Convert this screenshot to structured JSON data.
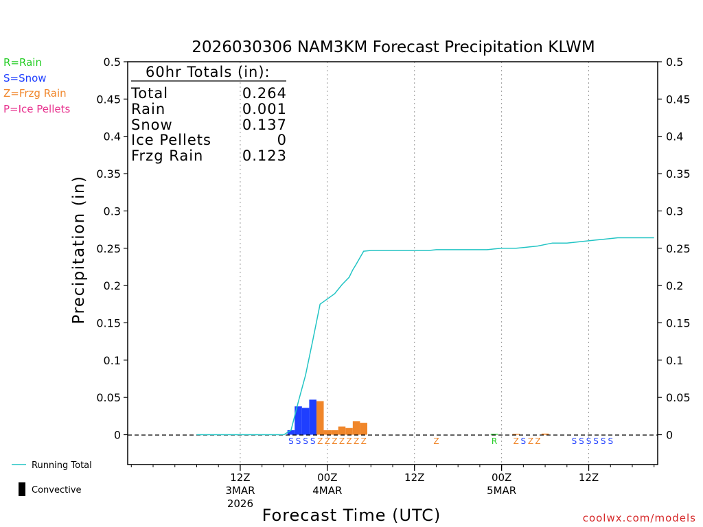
{
  "chart_data": {
    "type": "bar",
    "title": "2026030306 NAM3KM Forecast Precipitation KLWM",
    "xlabel": "Forecast Time (UTC)",
    "ylabel": "Precipitation (in)",
    "ylim": [
      -0.04,
      0.5
    ],
    "yticks": [
      "0.5",
      "0.45",
      "0.4",
      "0.35",
      "0.3",
      "0.25",
      "0.2",
      "0.15",
      "0.1",
      "0.05",
      "0"
    ],
    "ytick_values": [
      0.5,
      0.45,
      0.4,
      0.35,
      0.3,
      0.25,
      0.2,
      0.15,
      0.1,
      0.05,
      0
    ],
    "x_range_hours": [
      -9.5,
      63.5
    ],
    "x_ticks": [
      {
        "hour": 6,
        "l1": "12Z",
        "l2": "3MAR",
        "l3": "2026"
      },
      {
        "hour": 18,
        "l1": "00Z",
        "l2": "4MAR",
        "l3": ""
      },
      {
        "hour": 30,
        "l1": "12Z",
        "l2": "",
        "l3": ""
      },
      {
        "hour": 42,
        "l1": "00Z",
        "l2": "5MAR",
        "l3": ""
      },
      {
        "hour": 54,
        "l1": "12Z",
        "l2": "",
        "l3": ""
      }
    ],
    "bars": [
      {
        "hour": 13,
        "value": 0.006,
        "type": "S"
      },
      {
        "hour": 14,
        "value": 0.038,
        "type": "S"
      },
      {
        "hour": 15,
        "value": 0.036,
        "type": "S"
      },
      {
        "hour": 16,
        "value": 0.047,
        "type": "S"
      },
      {
        "hour": 17,
        "value": 0.045,
        "type": "Z"
      },
      {
        "hour": 18,
        "value": 0.006,
        "type": "Z"
      },
      {
        "hour": 19,
        "value": 0.006,
        "type": "Z"
      },
      {
        "hour": 20,
        "value": 0.011,
        "type": "Z"
      },
      {
        "hour": 21,
        "value": 0.009,
        "type": "Z"
      },
      {
        "hour": 22,
        "value": 0.018,
        "type": "Z"
      },
      {
        "hour": 23,
        "value": 0.016,
        "type": "Z"
      },
      {
        "hour": 41,
        "value": 0.0008,
        "type": "R"
      },
      {
        "hour": 44,
        "value": 0.0008,
        "type": "Z"
      },
      {
        "hour": 48,
        "value": 0.0015,
        "type": "Z"
      }
    ],
    "running_total": {
      "name": "Running Total",
      "x": [
        0,
        12,
        13,
        14,
        15,
        16,
        17,
        18,
        19,
        20,
        21,
        21.5,
        22,
        23,
        24,
        25,
        26,
        27,
        28,
        29,
        30,
        31,
        32,
        33,
        34,
        35,
        36,
        37,
        38,
        39,
        40,
        41,
        42,
        43,
        44,
        45,
        46,
        47,
        48,
        49,
        50,
        51,
        52,
        53,
        54,
        55,
        56,
        57,
        58,
        59,
        60,
        61,
        62,
        63
      ],
      "y": [
        0,
        0,
        0.006,
        0.044,
        0.08,
        0.127,
        0.175,
        0.182,
        0.189,
        0.201,
        0.211,
        0.221,
        0.229,
        0.246,
        0.247,
        0.247,
        0.247,
        0.247,
        0.247,
        0.247,
        0.247,
        0.247,
        0.247,
        0.248,
        0.248,
        0.248,
        0.248,
        0.248,
        0.248,
        0.248,
        0.248,
        0.249,
        0.25,
        0.25,
        0.25,
        0.251,
        0.252,
        0.253,
        0.255,
        0.257,
        0.257,
        0.257,
        0.258,
        0.259,
        0.26,
        0.261,
        0.262,
        0.263,
        0.264,
        0.264,
        0.264,
        0.264,
        0.264,
        0.264
      ]
    },
    "type_labels": [
      {
        "hour": 13,
        "ch": "S",
        "type": "S"
      },
      {
        "hour": 14,
        "ch": "S",
        "type": "S"
      },
      {
        "hour": 15,
        "ch": "S",
        "type": "S"
      },
      {
        "hour": 16,
        "ch": "S",
        "type": "S"
      },
      {
        "hour": 17,
        "ch": "Z",
        "type": "Z"
      },
      {
        "hour": 18,
        "ch": "Z",
        "type": "Z"
      },
      {
        "hour": 19,
        "ch": "Z",
        "type": "Z"
      },
      {
        "hour": 20,
        "ch": "Z",
        "type": "Z"
      },
      {
        "hour": 21,
        "ch": "Z",
        "type": "Z"
      },
      {
        "hour": 22,
        "ch": "Z",
        "type": "Z"
      },
      {
        "hour": 23,
        "ch": "Z",
        "type": "Z"
      },
      {
        "hour": 33,
        "ch": "Z",
        "type": "Z"
      },
      {
        "hour": 41,
        "ch": "R",
        "type": "R"
      },
      {
        "hour": 44,
        "ch": "Z",
        "type": "Z"
      },
      {
        "hour": 45,
        "ch": "S",
        "type": "S"
      },
      {
        "hour": 46,
        "ch": "Z",
        "type": "Z"
      },
      {
        "hour": 47,
        "ch": "Z",
        "type": "Z"
      },
      {
        "hour": 52,
        "ch": "S",
        "type": "S"
      },
      {
        "hour": 53,
        "ch": "S",
        "type": "S"
      },
      {
        "hour": 54,
        "ch": "S",
        "type": "S"
      },
      {
        "hour": 55,
        "ch": "S",
        "type": "S"
      },
      {
        "hour": 56,
        "ch": "S",
        "type": "S"
      },
      {
        "hour": 57,
        "ch": "S",
        "type": "S"
      }
    ],
    "colors": {
      "R": "#22cc22",
      "S": "#1f3fff",
      "Z": "#f0862a",
      "P": "#e8338f",
      "total": "#22c4c4"
    },
    "legend": [
      {
        "text": "R=Rain",
        "type": "R"
      },
      {
        "text": "S=Snow",
        "type": "S"
      },
      {
        "text": "Z=Frzg Rain",
        "type": "Z"
      },
      {
        "text": "P=Ice Pellets",
        "type": "P"
      }
    ],
    "bottom_legend": {
      "running_total": "Running Total",
      "convective": "Convective"
    },
    "totals": {
      "header": "60hr Totals (in):",
      "rows": [
        {
          "label": "Total",
          "value": "0.264"
        },
        {
          "label": "Rain",
          "value": "0.001"
        },
        {
          "label": "Snow",
          "value": "0.137"
        },
        {
          "label": "Ice Pellets",
          "value": "0"
        },
        {
          "label": "Frzg Rain",
          "value": "0.123"
        }
      ]
    },
    "credit": "coolwx.com/models"
  }
}
